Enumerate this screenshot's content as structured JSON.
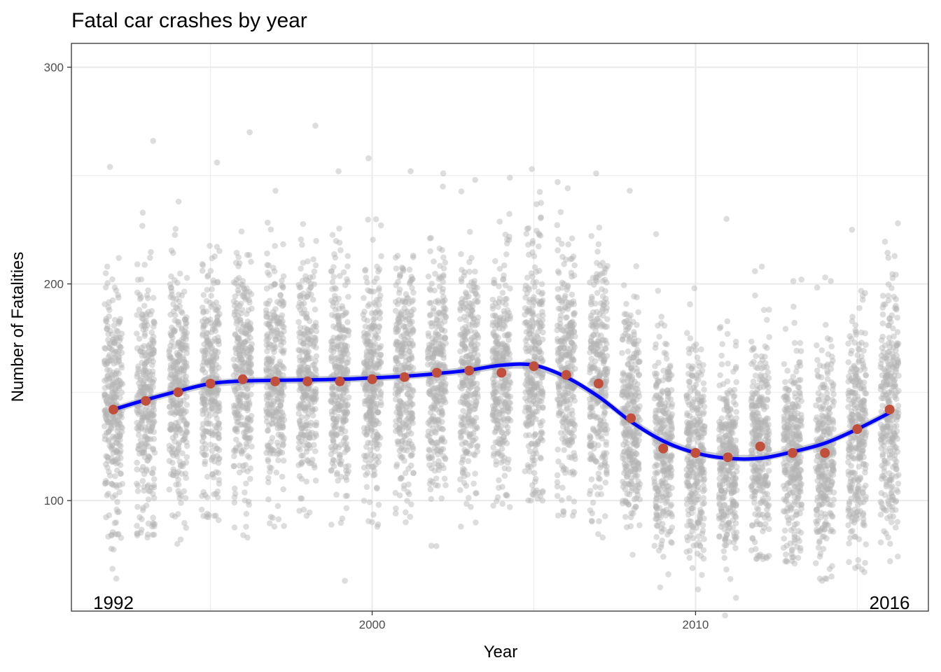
{
  "chart_data": {
    "type": "scatter",
    "title": "Fatal car crashes by year",
    "xlabel": "Year",
    "ylabel": "Number of Fatalities",
    "xlim": [
      1990.7,
      2017.2
    ],
    "ylim": [
      49,
      311
    ],
    "x_ticks": [
      2000,
      2010
    ],
    "y_ticks": [
      100,
      200,
      300
    ],
    "grid": true,
    "annotations": [
      {
        "text": "1992",
        "x": 1992,
        "y": 50
      },
      {
        "text": "2016",
        "x": 2016,
        "y": 50
      }
    ],
    "colors": {
      "points": "#b3b3b3",
      "means": "#c0503c",
      "smooth": "#0000ff",
      "ribbon": "#9fa6b8",
      "grid": "#ebebeb",
      "border": "#333333"
    },
    "series": [
      {
        "kind": "jittered daily points",
        "years": [
          1992,
          1993,
          1994,
          1995,
          1996,
          1997,
          1998,
          1999,
          2000,
          2001,
          2002,
          2003,
          2004,
          2005,
          2006,
          2007,
          2008,
          2009,
          2010,
          2011,
          2012,
          2013,
          2014,
          2015,
          2016
        ],
        "min": [
          64,
          83,
          80,
          91,
          83,
          88,
          93,
          63,
          88,
          90,
          79,
          88,
          97,
          100,
          93,
          83,
          75,
          60,
          59,
          47,
          73,
          71,
          63,
          67,
          72
        ],
        "max": [
          254,
          266,
          238,
          256,
          270,
          243,
          273,
          252,
          258,
          252,
          251,
          248,
          249,
          253,
          247,
          251,
          243,
          223,
          198,
          230,
          208,
          202,
          203,
          225,
          228
        ],
        "center": [
          142,
          146,
          150,
          154,
          156,
          155,
          155,
          155,
          156,
          157,
          159,
          160,
          159,
          162,
          158,
          154,
          138,
          124,
          122,
          120,
          125,
          122,
          122,
          133,
          142
        ],
        "spread": [
          28,
          27,
          27,
          27,
          26,
          27,
          26,
          27,
          27,
          27,
          26,
          26,
          27,
          27,
          27,
          28,
          25,
          24,
          24,
          24,
          24,
          24,
          24,
          27,
          27
        ]
      },
      {
        "name": "",
        "kind": "yearly mean",
        "x": [
          1992,
          1993,
          1994,
          1995,
          1996,
          1997,
          1998,
          1999,
          2000,
          2001,
          2002,
          2003,
          2004,
          2005,
          2006,
          2007,
          2008,
          2009,
          2010,
          2011,
          2012,
          2013,
          2014,
          2015,
          2016
        ],
        "y": [
          142,
          146,
          150,
          154,
          156,
          155,
          155,
          155,
          156,
          157,
          159,
          160,
          159,
          162,
          158,
          154,
          138,
          124,
          122,
          120,
          125,
          122,
          122,
          133,
          142
        ]
      },
      {
        "name": "",
        "kind": "smooth fit",
        "x": [
          1992,
          1993,
          1994,
          1995,
          1996,
          1997,
          1998,
          1999,
          2000,
          2001,
          2002,
          2003,
          2004,
          2005,
          2006,
          2007,
          2008,
          2009,
          2010,
          2011,
          2012,
          2013,
          2014,
          2015,
          2016
        ],
        "y": [
          142,
          146.5,
          150.5,
          154,
          155.2,
          155.5,
          155.7,
          156,
          156.6,
          157.4,
          158.6,
          160.2,
          162.5,
          162.5,
          157,
          148,
          136.5,
          127.5,
          122,
          119.5,
          119.5,
          122.5,
          126.5,
          133,
          140.5
        ]
      }
    ]
  }
}
